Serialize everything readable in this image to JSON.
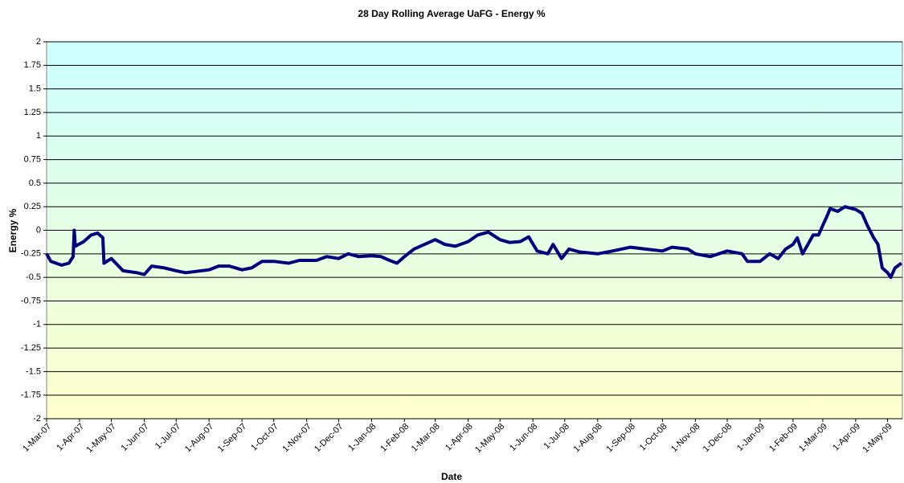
{
  "chart_data": {
    "type": "line",
    "title": "28 Day Rolling Average UaFG - Energy %",
    "xlabel": "Date",
    "ylabel": "Energy %",
    "color": "#000080",
    "grid": true,
    "plot_background": [
      "#ccffff",
      "#ffffcc"
    ],
    "ylim": [
      -2,
      2
    ],
    "yticks": [
      -2,
      -1.75,
      -1.5,
      -1.25,
      -1,
      -0.75,
      -0.5,
      -0.25,
      0,
      0.25,
      0.5,
      0.75,
      1,
      1.25,
      1.5,
      1.75,
      2
    ],
    "xlim": [
      "2007-03-01",
      "2009-05-15"
    ],
    "xticks": [
      {
        "value": "2007-03-01",
        "label": "1-Mar-07"
      },
      {
        "value": "2007-04-01",
        "label": "1-Apr-07"
      },
      {
        "value": "2007-05-01",
        "label": "1-May-07"
      },
      {
        "value": "2007-06-01",
        "label": "1-Jun-07"
      },
      {
        "value": "2007-07-01",
        "label": "1-Jul-07"
      },
      {
        "value": "2007-08-01",
        "label": "1-Aug-07"
      },
      {
        "value": "2007-09-01",
        "label": "1-Sep-07"
      },
      {
        "value": "2007-10-01",
        "label": "1-Oct-07"
      },
      {
        "value": "2007-11-01",
        "label": "1-Nov-07"
      },
      {
        "value": "2007-12-01",
        "label": "1-Dec-07"
      },
      {
        "value": "2008-01-01",
        "label": "1-Jan-08"
      },
      {
        "value": "2008-02-01",
        "label": "1-Feb-08"
      },
      {
        "value": "2008-03-01",
        "label": "1-Mar-08"
      },
      {
        "value": "2008-04-01",
        "label": "1-Apr-08"
      },
      {
        "value": "2008-05-01",
        "label": "1-May-08"
      },
      {
        "value": "2008-06-01",
        "label": "1-Jun-08"
      },
      {
        "value": "2008-07-01",
        "label": "1-Jul-08"
      },
      {
        "value": "2008-08-01",
        "label": "1-Aug-08"
      },
      {
        "value": "2008-09-01",
        "label": "1-Sep-08"
      },
      {
        "value": "2008-10-01",
        "label": "1-Oct-08"
      },
      {
        "value": "2008-11-01",
        "label": "1-Nov-08"
      },
      {
        "value": "2008-12-01",
        "label": "1-Dec-08"
      },
      {
        "value": "2009-01-01",
        "label": "1-Jan-09"
      },
      {
        "value": "2009-02-01",
        "label": "1-Feb-09"
      },
      {
        "value": "2009-03-01",
        "label": "1-Mar-09"
      },
      {
        "value": "2009-04-01",
        "label": "1-Apr-09"
      },
      {
        "value": "2009-05-01",
        "label": "1-May-09"
      }
    ],
    "x": [
      "2007-03-01",
      "2007-03-05",
      "2007-03-15",
      "2007-03-22",
      "2007-03-26",
      "2007-03-27",
      "2007-03-28",
      "2007-04-05",
      "2007-04-12",
      "2007-04-18",
      "2007-04-23",
      "2007-04-24",
      "2007-05-01",
      "2007-05-12",
      "2007-05-25",
      "2007-06-01",
      "2007-06-08",
      "2007-06-20",
      "2007-07-01",
      "2007-07-10",
      "2007-08-01",
      "2007-08-10",
      "2007-08-20",
      "2007-09-01",
      "2007-09-10",
      "2007-09-20",
      "2007-10-01",
      "2007-10-15",
      "2007-10-25",
      "2007-11-10",
      "2007-11-20",
      "2007-12-01",
      "2007-12-10",
      "2007-12-20",
      "2008-01-01",
      "2008-01-10",
      "2008-01-18",
      "2008-01-25",
      "2008-02-01",
      "2008-02-10",
      "2008-02-20",
      "2008-03-01",
      "2008-03-10",
      "2008-03-20",
      "2008-04-01",
      "2008-04-10",
      "2008-04-20",
      "2008-05-01",
      "2008-05-10",
      "2008-05-20",
      "2008-05-28",
      "2008-06-05",
      "2008-06-15",
      "2008-06-20",
      "2008-06-28",
      "2008-07-05",
      "2008-07-15",
      "2008-08-01",
      "2008-08-15",
      "2008-09-01",
      "2008-09-15",
      "2008-10-01",
      "2008-10-10",
      "2008-10-25",
      "2008-11-01",
      "2008-11-15",
      "2008-12-01",
      "2008-12-15",
      "2008-12-20",
      "2009-01-01",
      "2009-01-10",
      "2009-01-18",
      "2009-01-25",
      "2009-02-01",
      "2009-02-05",
      "2009-02-10",
      "2009-02-15",
      "2009-02-20",
      "2009-02-25",
      "2009-03-01",
      "2009-03-05",
      "2009-03-08",
      "2009-03-15",
      "2009-03-22",
      "2009-04-01",
      "2009-04-07",
      "2009-04-12",
      "2009-04-18",
      "2009-04-22",
      "2009-04-26",
      "2009-05-01",
      "2009-05-04",
      "2009-05-08",
      "2009-05-14"
    ],
    "values": [
      -0.25,
      -0.33,
      -0.37,
      -0.35,
      -0.28,
      0,
      -0.17,
      -0.12,
      -0.05,
      -0.03,
      -0.08,
      -0.35,
      -0.3,
      -0.43,
      -0.45,
      -0.47,
      -0.38,
      -0.4,
      -0.43,
      -0.45,
      -0.42,
      -0.38,
      -0.38,
      -0.42,
      -0.4,
      -0.33,
      -0.33,
      -0.35,
      -0.32,
      -0.32,
      -0.28,
      -0.3,
      -0.25,
      -0.28,
      -0.27,
      -0.28,
      -0.32,
      -0.35,
      -0.28,
      -0.2,
      -0.15,
      -0.1,
      -0.15,
      -0.17,
      -0.12,
      -0.05,
      -0.02,
      -0.1,
      -0.13,
      -0.12,
      -0.07,
      -0.22,
      -0.25,
      -0.15,
      -0.3,
      -0.2,
      -0.23,
      -0.25,
      -0.22,
      -0.18,
      -0.2,
      -0.22,
      -0.18,
      -0.2,
      -0.25,
      -0.28,
      -0.22,
      -0.25,
      -0.33,
      -0.33,
      -0.25,
      -0.3,
      -0.2,
      -0.15,
      -0.08,
      -0.25,
      -0.15,
      -0.05,
      -0.05,
      0.05,
      0.15,
      0.23,
      0.2,
      0.25,
      0.22,
      0.18,
      0.05,
      -0.08,
      -0.15,
      -0.4,
      -0.45,
      -0.5,
      -0.4,
      -0.35
    ]
  }
}
